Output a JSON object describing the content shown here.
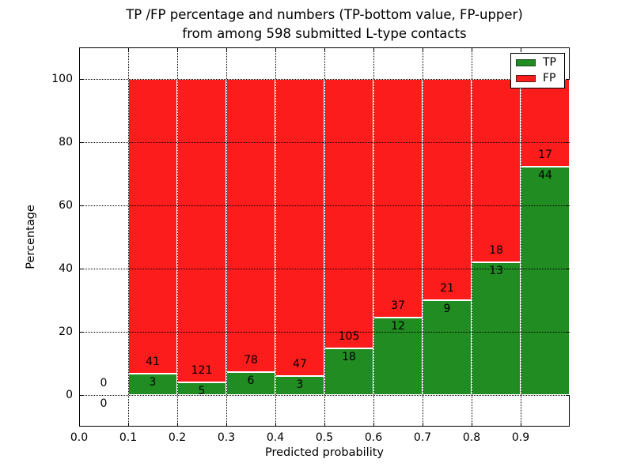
{
  "chart_data": {
    "type": "bar",
    "stacked": true,
    "title_lines": [
      "TP /FP percentage and numbers (TP-bottom value, FP-upper)",
      "from among 598 submitted L-type contacts"
    ],
    "xlabel": "Predicted probability",
    "ylabel": "Percentage",
    "xlim": [
      0.0,
      1.0
    ],
    "ylim": [
      -10,
      110
    ],
    "bin_width": 0.1,
    "grid": "dotted-black-over-bars",
    "legend_position": "upper right",
    "xticks": [
      0.0,
      0.1,
      0.2,
      0.3,
      0.4,
      0.5,
      0.6,
      0.7,
      0.8,
      0.9
    ],
    "xtick_labels": [
      "0.0",
      "0.1",
      "0.2",
      "0.3",
      "0.4",
      "0.5",
      "0.6",
      "0.7",
      "0.8",
      "0.9"
    ],
    "yticks": [
      0,
      20,
      40,
      60,
      80,
      100
    ],
    "ytick_labels": [
      "0",
      "20",
      "40",
      "60",
      "80",
      "100"
    ],
    "series": [
      {
        "name": "TP",
        "color": "#218c21"
      },
      {
        "name": "FP",
        "color": "#fc1c1c"
      }
    ],
    "bins": [
      {
        "x_start": 0.0,
        "tp_count": 0,
        "fp_count": 0,
        "tp_pct": 0,
        "fp_pct": 0
      },
      {
        "x_start": 0.1,
        "tp_count": 3,
        "fp_count": 41,
        "tp_pct": 6.82,
        "fp_pct": 93.18
      },
      {
        "x_start": 0.2,
        "tp_count": 5,
        "fp_count": 121,
        "tp_pct": 3.97,
        "fp_pct": 96.03
      },
      {
        "x_start": 0.3,
        "tp_count": 6,
        "fp_count": 78,
        "tp_pct": 7.14,
        "fp_pct": 92.86
      },
      {
        "x_start": 0.4,
        "tp_count": 3,
        "fp_count": 47,
        "tp_pct": 6.0,
        "fp_pct": 94.0
      },
      {
        "x_start": 0.5,
        "tp_count": 18,
        "fp_count": 105,
        "tp_pct": 14.63,
        "fp_pct": 85.37
      },
      {
        "x_start": 0.6,
        "tp_count": 12,
        "fp_count": 37,
        "tp_pct": 24.49,
        "fp_pct": 75.51
      },
      {
        "x_start": 0.7,
        "tp_count": 9,
        "fp_count": 21,
        "tp_pct": 30.0,
        "fp_pct": 70.0
      },
      {
        "x_start": 0.8,
        "tp_count": 13,
        "fp_count": 18,
        "tp_pct": 41.94,
        "fp_pct": 58.06
      },
      {
        "x_start": 0.9,
        "tp_count": 44,
        "fp_count": 17,
        "tp_pct": 72.13,
        "fp_pct": 27.87
      }
    ]
  },
  "colors": {
    "tp": "#218c21",
    "fp": "#fc1c1c",
    "background": "#ffffff",
    "grid": "#000000",
    "bar_edge": "#ffffff"
  }
}
